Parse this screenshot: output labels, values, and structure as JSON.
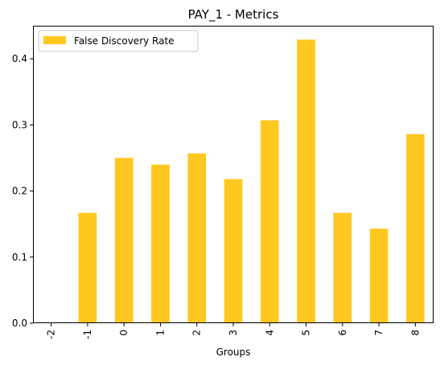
{
  "chart_data": {
    "type": "bar",
    "title": "PAY_1 - Metrics",
    "xlabel": "Groups",
    "ylabel": "",
    "categories": [
      "-2",
      "-1",
      "0",
      "1",
      "2",
      "3",
      "4",
      "5",
      "6",
      "7",
      "8"
    ],
    "series": [
      {
        "name": "False Discovery Rate",
        "color": "#ffc820",
        "values": [
          0.0,
          0.167,
          0.25,
          0.24,
          0.257,
          0.218,
          0.307,
          0.429,
          0.167,
          0.143,
          0.286
        ]
      }
    ],
    "ylim": [
      0,
      0.45
    ],
    "yticks": [
      0.0,
      0.1,
      0.2,
      0.3,
      0.4
    ],
    "ytick_labels": [
      "0.0",
      "0.1",
      "0.2",
      "0.3",
      "0.4"
    ],
    "grid": false,
    "legend_position": "top-left",
    "x_tick_rotation": "vertical"
  }
}
